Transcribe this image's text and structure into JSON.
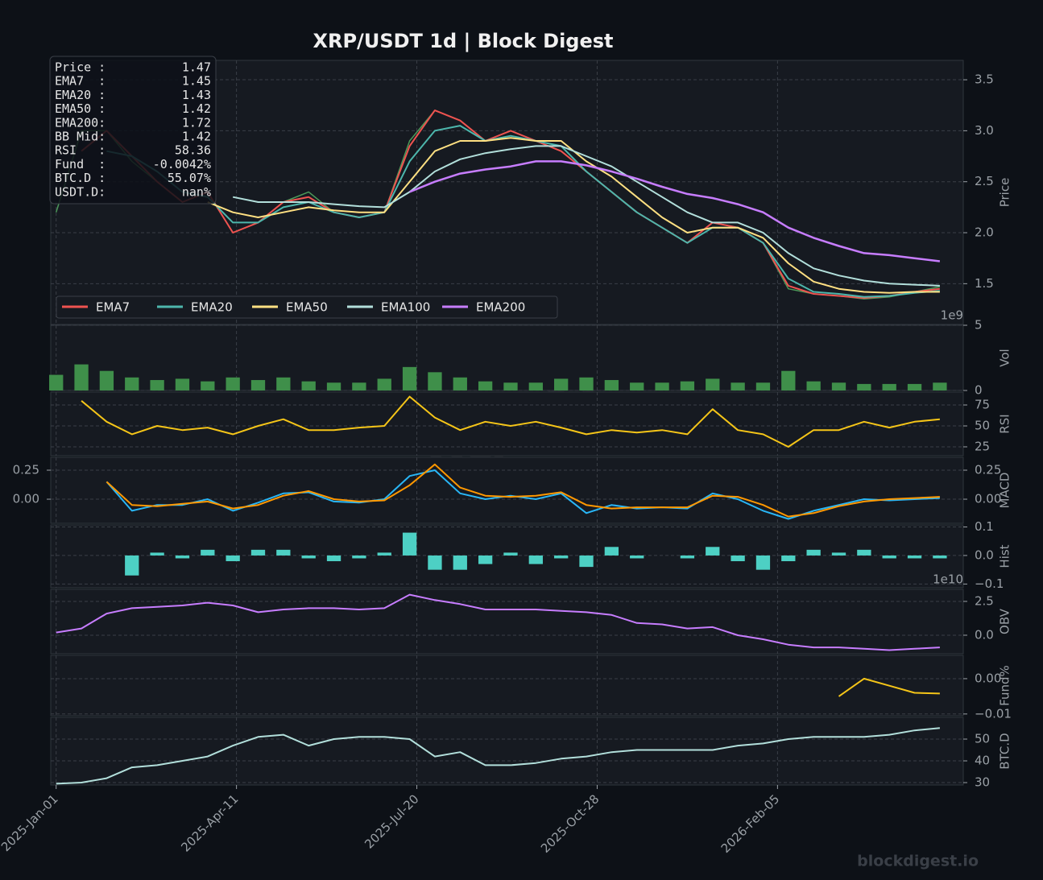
{
  "title": "XRP/USDT  1d  |  Block Digest",
  "watermark": "blockdigest.io",
  "info_box": [
    [
      "Price :",
      "1.47"
    ],
    [
      "EMA7  :",
      "1.45"
    ],
    [
      "EMA20 :",
      "1.43"
    ],
    [
      "EMA50 :",
      "1.42"
    ],
    [
      "EMA200:",
      "1.72"
    ],
    [
      "BB Mid:",
      "1.42"
    ],
    [
      "RSI   :",
      "58.36"
    ],
    [
      "Fund  :",
      "-0.0042%"
    ],
    [
      "BTC.D :",
      "55.07%"
    ],
    [
      "USDT.D:",
      "nan%"
    ]
  ],
  "x": [
    "2025-01-01",
    "2025-01-15",
    "2025-01-29",
    "2025-02-12",
    "2025-02-26",
    "2025-03-12",
    "2025-03-26",
    "2025-04-09",
    "2025-04-23",
    "2025-05-07",
    "2025-05-21",
    "2025-06-04",
    "2025-06-18",
    "2025-07-02",
    "2025-07-16",
    "2025-07-30",
    "2025-08-13",
    "2025-08-27",
    "2025-09-10",
    "2025-09-24",
    "2025-10-08",
    "2025-10-22",
    "2025-11-05",
    "2025-11-19",
    "2025-12-03",
    "2025-12-17",
    "2025-12-31",
    "2026-01-14",
    "2026-01-28",
    "2026-02-11",
    "2026-02-25",
    "2026-03-11",
    "2026-03-25",
    "2026-04-08",
    "2026-04-22",
    "2026-05-06"
  ],
  "xlim": [
    "2024-12-29",
    "2026-05-19"
  ],
  "xticks": [
    {
      "value": "2025-01-01",
      "label": "2025-Jan-01"
    },
    {
      "value": "2025-04-11",
      "label": "2025-Apr-11"
    },
    {
      "value": "2025-07-20",
      "label": "2025-Jul-20"
    },
    {
      "value": "2025-10-28",
      "label": "2025-Oct-28"
    },
    {
      "value": "2026-02-05",
      "label": "2026-Feb-05"
    }
  ],
  "chart_data": [
    {
      "type": "line",
      "ylabel": "Price",
      "ylim": [
        1.1,
        3.69
      ],
      "legend": "lower left",
      "grid": true,
      "yticks": [
        1.5,
        {
          "value": 2,
          "label": "2.0"
        },
        2.5,
        {
          "value": 3,
          "label": "3.0"
        },
        3.5
      ],
      "price": {
        "name": "Price",
        "color": "#4c9a5a",
        "values": [
          2.2,
          3.0,
          3.0,
          2.7,
          2.5,
          2.3,
          2.4,
          2.0,
          2.1,
          2.3,
          2.4,
          2.2,
          2.15,
          2.2,
          2.9,
          3.2,
          3.1,
          2.9,
          3.0,
          2.9,
          2.8,
          2.6,
          2.4,
          2.2,
          2.05,
          1.9,
          2.1,
          2.05,
          1.9,
          1.45,
          1.4,
          1.38,
          1.35,
          1.37,
          1.42,
          1.47
        ]
      },
      "series": [
        {
          "name": "EMA7",
          "color": "#ef5350",
          "values": [
            null,
            2.8,
            3.0,
            2.75,
            2.5,
            2.3,
            2.4,
            2.0,
            2.1,
            2.3,
            2.35,
            2.2,
            2.15,
            2.2,
            2.85,
            3.2,
            3.1,
            2.9,
            3.0,
            2.9,
            2.8,
            2.6,
            2.4,
            2.2,
            2.05,
            1.9,
            2.1,
            2.05,
            1.9,
            1.48,
            1.4,
            1.38,
            1.36,
            1.38,
            1.42,
            1.45
          ]
        },
        {
          "name": "EMA20",
          "color": "#4db6ac",
          "values": [
            null,
            null,
            2.8,
            2.75,
            2.6,
            2.4,
            2.35,
            2.1,
            2.1,
            2.25,
            2.3,
            2.2,
            2.15,
            2.2,
            2.7,
            3.0,
            3.05,
            2.9,
            2.95,
            2.9,
            2.85,
            2.6,
            2.4,
            2.2,
            2.05,
            1.9,
            2.05,
            2.05,
            1.9,
            1.55,
            1.42,
            1.4,
            1.37,
            1.38,
            1.41,
            1.43
          ]
        },
        {
          "name": "EMA50",
          "color": "#ffe082",
          "values": [
            null,
            null,
            null,
            null,
            null,
            null,
            2.3,
            2.2,
            2.15,
            2.2,
            2.25,
            2.22,
            2.2,
            2.2,
            2.5,
            2.8,
            2.9,
            2.9,
            2.93,
            2.9,
            2.9,
            2.7,
            2.55,
            2.35,
            2.15,
            2.0,
            2.05,
            2.05,
            1.95,
            1.7,
            1.52,
            1.45,
            1.42,
            1.41,
            1.42,
            1.42
          ]
        },
        {
          "name": "EMA100",
          "color": "#b2dfdb",
          "values": [
            null,
            null,
            null,
            null,
            null,
            null,
            null,
            2.35,
            2.3,
            2.3,
            2.3,
            2.28,
            2.26,
            2.25,
            2.4,
            2.6,
            2.72,
            2.78,
            2.82,
            2.85,
            2.85,
            2.75,
            2.65,
            2.5,
            2.35,
            2.2,
            2.1,
            2.1,
            2.0,
            1.8,
            1.65,
            1.58,
            1.53,
            1.5,
            1.49,
            1.48
          ]
        },
        {
          "name": "EMA200",
          "color": "#c77dff",
          "values": [
            null,
            null,
            null,
            null,
            null,
            null,
            null,
            null,
            null,
            null,
            null,
            null,
            null,
            null,
            2.4,
            2.5,
            2.58,
            2.62,
            2.65,
            2.7,
            2.7,
            2.66,
            2.6,
            2.53,
            2.45,
            2.38,
            2.34,
            2.28,
            2.2,
            2.05,
            1.95,
            1.87,
            1.8,
            1.78,
            1.75,
            1.72
          ]
        }
      ]
    },
    {
      "type": "bar",
      "ylabel": "Vol",
      "ylim": [
        0,
        5
      ],
      "yticks": [
        0,
        5
      ],
      "offset_label": "1e9",
      "grid": true,
      "series": [
        {
          "color": "#3f8f4a",
          "values": [
            1.2,
            2.0,
            1.5,
            1.0,
            0.8,
            0.9,
            0.7,
            1.0,
            0.8,
            1.0,
            0.7,
            0.6,
            0.6,
            0.9,
            1.8,
            1.4,
            1.0,
            0.7,
            0.6,
            0.6,
            0.9,
            1.0,
            0.8,
            0.6,
            0.6,
            0.7,
            0.9,
            0.6,
            0.6,
            1.5,
            0.7,
            0.6,
            0.5,
            0.5,
            0.5,
            0.6
          ]
        }
      ]
    },
    {
      "type": "line",
      "ylabel": "RSI",
      "ylim": [
        14.4,
        90.4
      ],
      "yticks": [
        25,
        50,
        75
      ],
      "grid": true,
      "series": [
        {
          "color": "#f5c518",
          "values": [
            null,
            80,
            55,
            40,
            50,
            45,
            48,
            40,
            50,
            58,
            45,
            45,
            48,
            50,
            85,
            60,
            45,
            55,
            50,
            55,
            48,
            40,
            45,
            42,
            45,
            40,
            70,
            45,
            40,
            25,
            45,
            45,
            55,
            48,
            55,
            58
          ]
        }
      ]
    },
    {
      "type": "line",
      "ylabel": "MACD",
      "ylim": [
        -0.208,
        0.361
      ],
      "left_ticks": true,
      "grid": true,
      "yticks": [
        {
          "value": 0,
          "label": "0.00"
        },
        0.25
      ],
      "series": [
        {
          "color": "#29b6f6",
          "values": [
            null,
            null,
            0.15,
            -0.1,
            -0.05,
            -0.05,
            0.0,
            -0.1,
            -0.03,
            0.05,
            0.06,
            -0.02,
            -0.03,
            0.0,
            0.2,
            0.25,
            0.05,
            0.0,
            0.03,
            0.0,
            0.05,
            -0.12,
            -0.05,
            -0.08,
            -0.07,
            -0.08,
            0.05,
            0.0,
            -0.1,
            -0.17,
            -0.1,
            -0.05,
            0.0,
            -0.01,
            0.0,
            0.01
          ]
        },
        {
          "color": "#ff9800",
          "values": [
            null,
            null,
            0.15,
            -0.05,
            -0.06,
            -0.04,
            -0.02,
            -0.08,
            -0.05,
            0.03,
            0.07,
            0.0,
            -0.02,
            -0.01,
            0.12,
            0.3,
            0.1,
            0.03,
            0.02,
            0.03,
            0.06,
            -0.05,
            -0.08,
            -0.07,
            -0.07,
            -0.07,
            0.03,
            0.02,
            -0.05,
            -0.15,
            -0.12,
            -0.06,
            -0.02,
            0.0,
            0.01,
            0.02
          ]
        }
      ]
    },
    {
      "type": "bar",
      "ylabel": "Hist",
      "ylim": [
        -0.113,
        0.107
      ],
      "grid": true,
      "yticks": [
        {
          "value": -0.1,
          "label": "−0.1"
        },
        {
          "value": 0,
          "label": "0.0"
        },
        0.1
      ],
      "series": [
        {
          "color": "#4dd0c4",
          "values": [
            null,
            null,
            0.0,
            -0.07,
            0.01,
            -0.01,
            0.02,
            -0.02,
            0.02,
            0.02,
            -0.01,
            -0.02,
            -0.01,
            0.01,
            0.08,
            -0.05,
            -0.05,
            -0.03,
            0.01,
            -0.03,
            -0.01,
            -0.04,
            0.03,
            -0.01,
            0.0,
            -0.01,
            0.03,
            -0.02,
            -0.05,
            -0.02,
            0.02,
            0.01,
            0.02,
            -0.01,
            -0.01,
            -0.01
          ]
        }
      ]
    },
    {
      "type": "line",
      "ylabel": "OBV",
      "ylim": [
        -1.37,
        3.39
      ],
      "offset_label": "1e10",
      "grid": true,
      "yticks": [
        {
          "value": 0,
          "label": "0.0"
        },
        2.5
      ],
      "series": [
        {
          "color": "#c77dff",
          "values": [
            0.2,
            0.5,
            1.6,
            2.0,
            2.1,
            2.2,
            2.4,
            2.2,
            1.7,
            1.9,
            2.0,
            2.0,
            1.9,
            2.0,
            3.0,
            2.6,
            2.3,
            1.9,
            1.9,
            1.9,
            1.8,
            1.7,
            1.5,
            0.9,
            0.8,
            0.5,
            0.6,
            0.0,
            -0.3,
            -0.7,
            -0.9,
            -0.9,
            -1.0,
            -1.1,
            -1.0,
            -0.9
          ]
        }
      ]
    },
    {
      "type": "line",
      "ylabel": "Fund%",
      "ylim": [
        -0.0105,
        0.0066
      ],
      "grid": true,
      "yticks": [
        {
          "value": -0.01,
          "label": "−0.01"
        },
        {
          "value": 0,
          "label": "0.00"
        }
      ],
      "series": [
        {
          "color": "#f5c518",
          "values": [
            null,
            null,
            null,
            null,
            null,
            null,
            null,
            null,
            null,
            null,
            null,
            null,
            null,
            null,
            null,
            null,
            null,
            null,
            null,
            null,
            null,
            null,
            null,
            null,
            null,
            null,
            null,
            null,
            null,
            null,
            null,
            -0.005,
            0.0,
            -0.002,
            -0.004,
            -0.0042
          ]
        }
      ]
    },
    {
      "type": "line",
      "ylabel": "BTC.D",
      "ylim": [
        28.9,
        60
      ],
      "yticks": [
        30,
        40,
        50
      ],
      "grid": true,
      "series": [
        {
          "color": "#b2dfdb",
          "values": [
            29.5,
            30,
            32,
            37,
            38,
            40,
            42,
            47,
            51,
            52,
            47,
            50,
            51,
            51,
            50,
            42,
            44,
            38,
            38,
            39,
            41,
            42,
            44,
            45,
            45,
            45,
            45,
            47,
            48,
            50,
            51,
            51,
            51,
            52,
            54,
            55.07
          ]
        }
      ]
    }
  ]
}
